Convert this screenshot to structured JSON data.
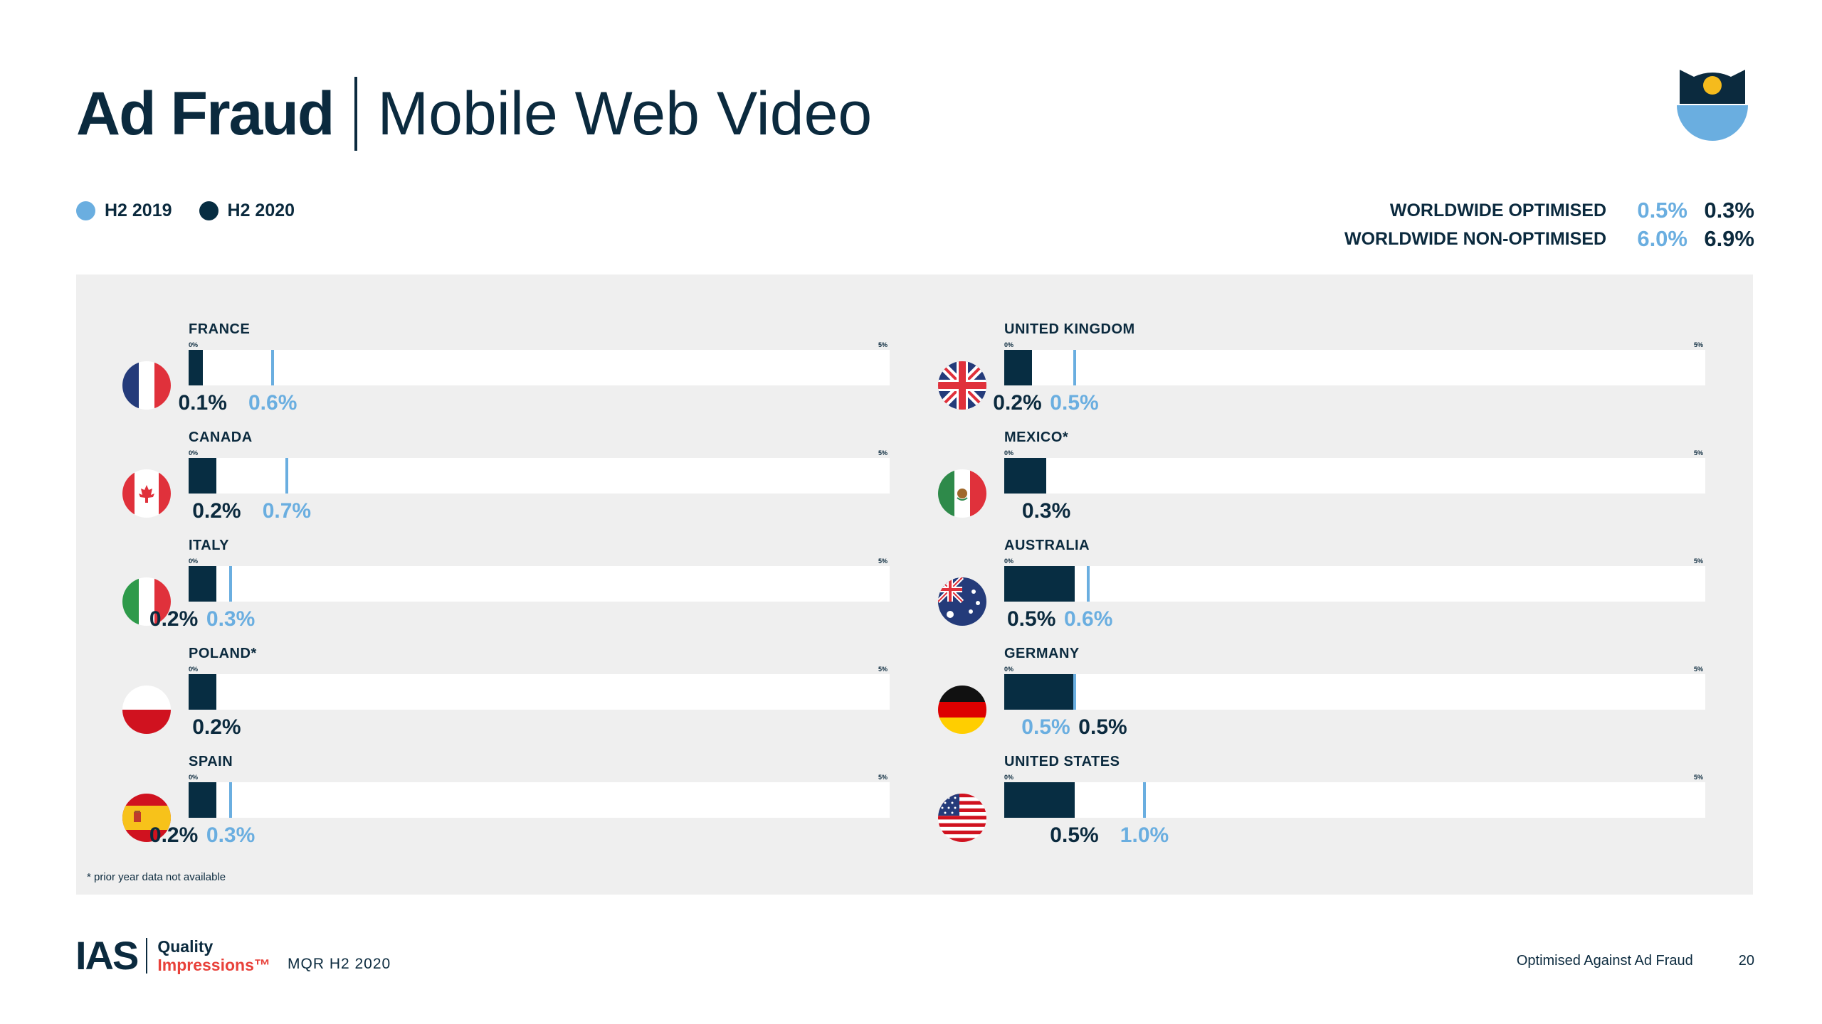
{
  "title": {
    "bold": "Ad Fraud",
    "light": "Mobile Web Video"
  },
  "legend": [
    {
      "label": "H2 2019",
      "color": "#6aaee0"
    },
    {
      "label": "H2 2020",
      "color": "#072d42"
    }
  ],
  "worldwide": [
    {
      "label": "WORLDWIDE OPTIMISED",
      "h2_2019": "0.5%",
      "h2_2020": "0.3%"
    },
    {
      "label": "WORLDWIDE NON-OPTIMISED",
      "h2_2019": "6.0%",
      "h2_2020": "6.9%"
    }
  ],
  "tick_labels": {
    "min": "0%",
    "max": "5%"
  },
  "chart_data": {
    "type": "bar",
    "orientation": "horizontal",
    "xlim": [
      0,
      5
    ],
    "unit": "%",
    "countries": [
      {
        "name": "FRANCE",
        "flag": "france-flag-icon",
        "h2_2020": 0.1,
        "h2_2019": 0.6,
        "label_2020": "0.1%",
        "label_2019": "0.6%"
      },
      {
        "name": "CANADA",
        "flag": "canada-flag-icon",
        "h2_2020": 0.2,
        "h2_2019": 0.7,
        "label_2020": "0.2%",
        "label_2019": "0.7%"
      },
      {
        "name": "ITALY",
        "flag": "italy-flag-icon",
        "h2_2020": 0.2,
        "h2_2019": 0.3,
        "label_2020": "0.2%",
        "label_2019": "0.3%"
      },
      {
        "name": "POLAND*",
        "flag": "poland-flag-icon",
        "h2_2020": 0.2,
        "h2_2019": null,
        "label_2020": "0.2%",
        "label_2019": ""
      },
      {
        "name": "SPAIN",
        "flag": "spain-flag-icon",
        "h2_2020": 0.2,
        "h2_2019": 0.3,
        "label_2020": "0.2%",
        "label_2019": "0.3%"
      },
      {
        "name": "UNITED KINGDOM",
        "flag": "uk-flag-icon",
        "h2_2020": 0.2,
        "h2_2019": 0.5,
        "label_2020": "0.2%",
        "label_2019": "0.5%"
      },
      {
        "name": "MEXICO*",
        "flag": "mexico-flag-icon",
        "h2_2020": 0.3,
        "h2_2019": null,
        "label_2020": "0.3%",
        "label_2019": ""
      },
      {
        "name": "AUSTRALIA",
        "flag": "australia-flag-icon",
        "h2_2020": 0.5,
        "h2_2019": 0.6,
        "label_2020": "0.5%",
        "label_2019": "0.6%"
      },
      {
        "name": "GERMANY",
        "flag": "germany-flag-icon",
        "h2_2020": 0.5,
        "h2_2019": 0.5,
        "label_2020": "0.5%",
        "label_2019": "0.5%"
      },
      {
        "name": "UNITED STATES",
        "flag": "usa-flag-icon",
        "h2_2020": 0.5,
        "h2_2019": 1.0,
        "label_2020": "0.5%",
        "label_2019": "1.0%"
      }
    ]
  },
  "footnote": "* prior year data not available",
  "footer": {
    "logo_text": "IAS",
    "tagline_1": "Quality",
    "tagline_2": "Impressions™",
    "report": "MQR H2 2020",
    "section": "Optimised Against Ad Fraud",
    "page_number": "20"
  }
}
